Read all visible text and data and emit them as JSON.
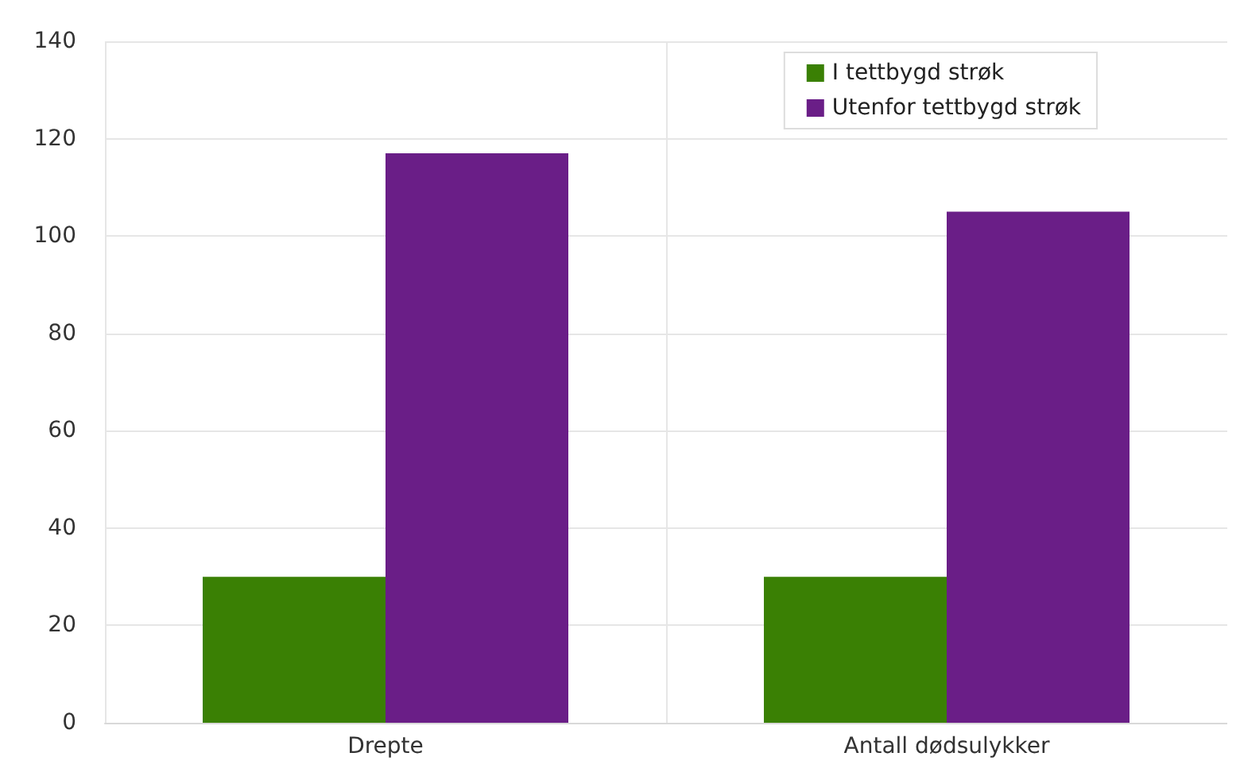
{
  "chart_data": {
    "type": "bar",
    "categories": [
      "Drepte",
      "Antall dødsulykker"
    ],
    "series": [
      {
        "name": "I tettbygd strøk",
        "color": "#3a8004",
        "values": [
          30,
          30
        ]
      },
      {
        "name": "Utenfor tettbygd strøk",
        "color": "#6a1e87",
        "values": [
          117,
          105
        ]
      }
    ],
    "ylim": [
      0,
      140
    ],
    "yticks": [
      0,
      20,
      40,
      60,
      80,
      100,
      120,
      140
    ],
    "grid": true,
    "legend": "top right"
  }
}
